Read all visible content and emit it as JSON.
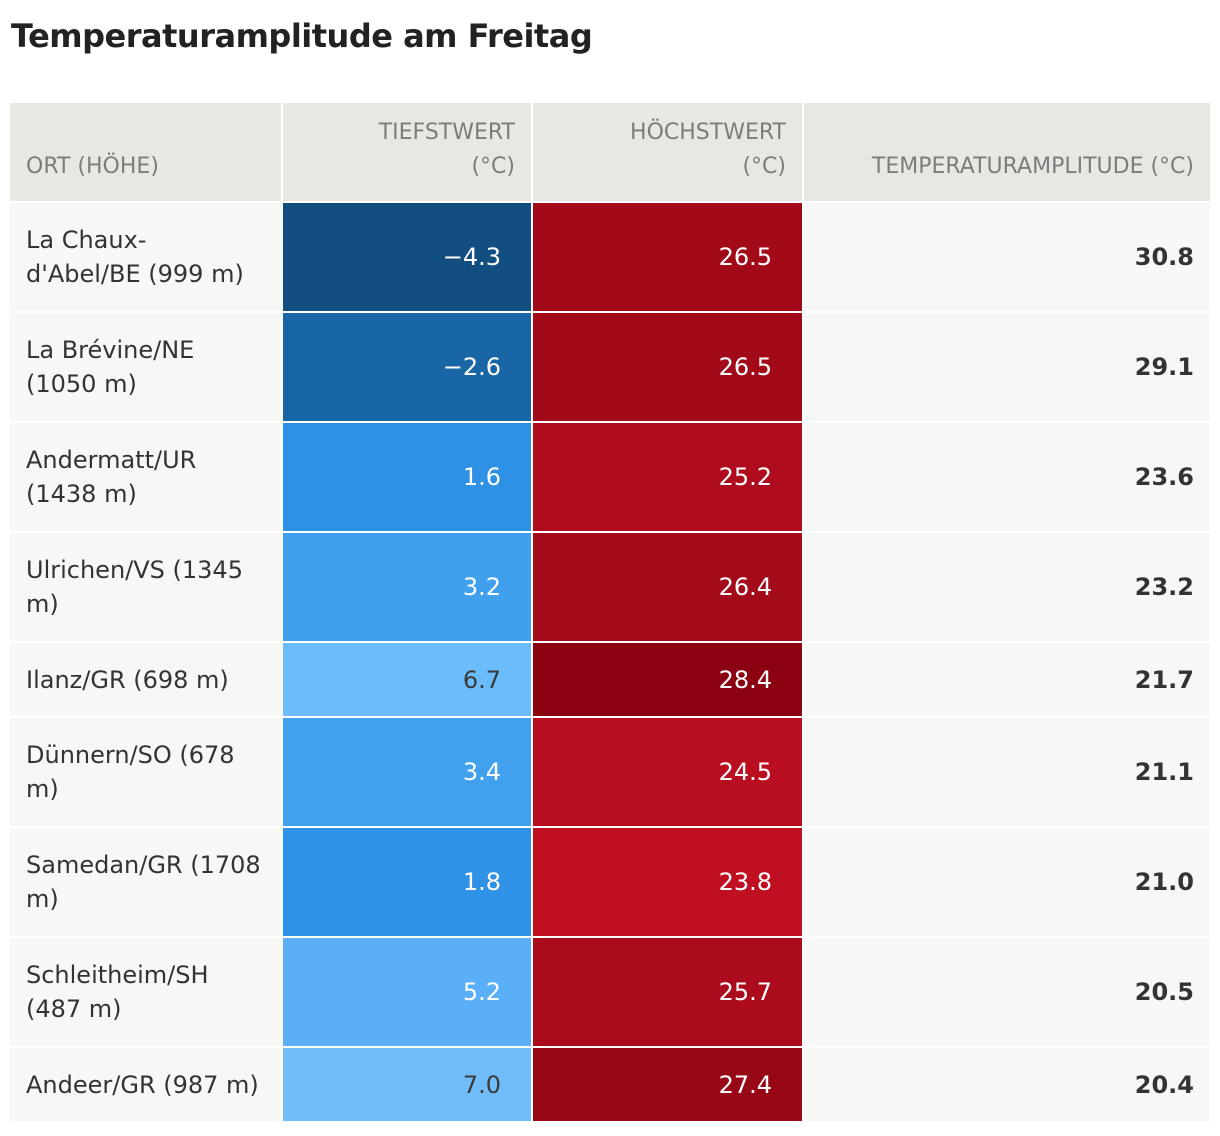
{
  "title": "Temperaturamplitude am Freitag",
  "headers": {
    "location": "ORT (HÖHE)",
    "min_line1": "TIEFSTWERT",
    "min_line2": "(°C)",
    "max_line1": "HÖCHSTWERT",
    "max_line2": "(°C)",
    "amplitude": "TEMPERATURAMPLITUDE (°C)"
  },
  "rows": [
    {
      "loc_line1": "La Chaux-",
      "loc_line2": "d'Abel/BE (999 m)",
      "min": "−4.3",
      "max": "26.5",
      "amp": "30.8",
      "min_color": "#124f80",
      "max_color": "#a20919"
    },
    {
      "loc_line1": "La Brévine/NE",
      "loc_line2": "(1050 m)",
      "min": "−2.6",
      "max": "26.5",
      "amp": "29.1",
      "min_color": "#1866a5",
      "max_color": "#a20919"
    },
    {
      "loc_line1": "Andermatt/UR",
      "loc_line2": "(1438 m)",
      "min": "1.6",
      "max": "25.2",
      "amp": "23.6",
      "min_color": "#2e91e5",
      "max_color": "#af0c1d"
    },
    {
      "loc_line1": "Ulrichen/VS (1345",
      "loc_line2": "m)",
      "min": "3.2",
      "max": "26.4",
      "amp": "23.2",
      "min_color": "#41a0ee",
      "max_color": "#a30a1a"
    },
    {
      "loc_line1": "Ilanz/GR (698 m)",
      "loc_line2": "",
      "min": "6.7",
      "max": "28.4",
      "amp": "21.7",
      "min_color": "#6bbcfd",
      "max_color": "#8b0313"
    },
    {
      "loc_line1": "Dünnern/SO (678",
      "loc_line2": "m)",
      "min": "3.4",
      "max": "24.5",
      "amp": "21.1",
      "min_color": "#42a1ef",
      "max_color": "#b80e20"
    },
    {
      "loc_line1": "Samedan/GR (1708",
      "loc_line2": "m)",
      "min": "1.8",
      "max": "23.8",
      "amp": "21.0",
      "min_color": "#2f92e6",
      "max_color": "#c10f22"
    },
    {
      "loc_line1": "Schleitheim/SH",
      "loc_line2": "(487 m)",
      "min": "5.2",
      "max": "25.7",
      "amp": "20.5",
      "min_color": "#5aaff7",
      "max_color": "#ab0b1c"
    },
    {
      "loc_line1": "Andeer/GR (987 m)",
      "loc_line2": "",
      "min": "7.0",
      "max": "27.4",
      "amp": "20.4",
      "min_color": "#70bdf9",
      "max_color": "#980716"
    }
  ]
}
